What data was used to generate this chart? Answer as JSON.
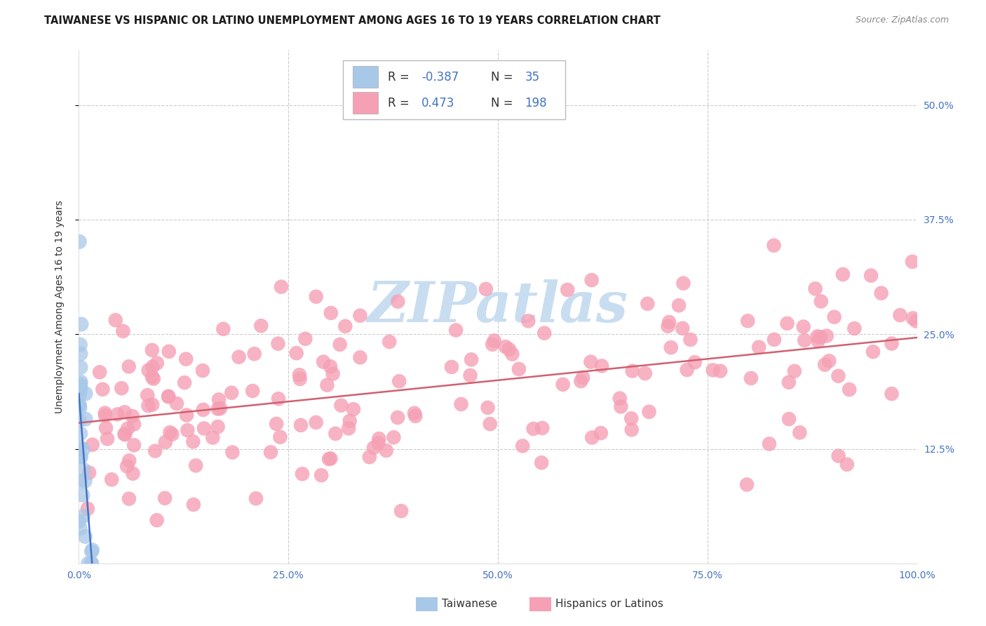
{
  "title": "TAIWANESE VS HISPANIC OR LATINO UNEMPLOYMENT AMONG AGES 16 TO 19 YEARS CORRELATION CHART",
  "source": "Source: ZipAtlas.com",
  "ylabel": "Unemployment Among Ages 16 to 19 years",
  "xlim": [
    0,
    1.0
  ],
  "ylim": [
    0,
    0.56
  ],
  "xtick_positions": [
    0.0,
    0.25,
    0.5,
    0.75,
    1.0
  ],
  "xtick_labels": [
    "0.0%",
    "25.0%",
    "50.0%",
    "75.0%",
    "100.0%"
  ],
  "ytick_positions": [
    0.125,
    0.25,
    0.375,
    0.5
  ],
  "ytick_right_labels": [
    "12.5%",
    "25.0%",
    "37.5%",
    "50.0%"
  ],
  "legend_R1": "-0.387",
  "legend_N1": "35",
  "legend_R2": "0.473",
  "legend_N2": "198",
  "color_taiwanese": "#a8c8e8",
  "color_hispanic": "#f5a0b5",
  "color_trendline_taiwanese": "#4472c4",
  "color_trendline_hispanic": "#d06070",
  "background_color": "#ffffff",
  "grid_color": "#cccccc",
  "watermark_color": "#c8ddf0",
  "title_fontsize": 10.5,
  "axis_label_fontsize": 10,
  "tick_fontsize": 10,
  "right_tick_color": "#4472c4",
  "bottom_tick_color": "#4472c4"
}
